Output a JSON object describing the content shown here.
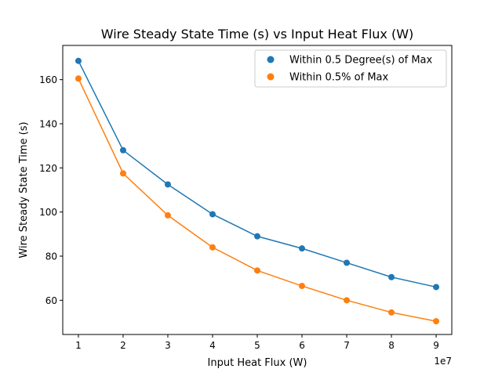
{
  "chart_data": {
    "type": "line",
    "title": "Wire Steady State Time (s) vs Input Heat Flux (W)",
    "xlabel": "Input Heat Flux (W)",
    "ylabel": "Wire Steady State Time (s)",
    "x_offset_label": "1e7",
    "x": [
      1,
      2,
      3,
      4,
      5,
      6,
      7,
      8,
      9
    ],
    "xlim": [
      0.65,
      9.35
    ],
    "ylim": [
      44.5,
      175.5
    ],
    "x_ticks": [
      1,
      2,
      3,
      4,
      5,
      6,
      7,
      8,
      9
    ],
    "y_ticks": [
      60,
      80,
      100,
      120,
      140,
      160
    ],
    "grid": false,
    "legend_position": "top-right",
    "series": [
      {
        "name": "Within 0.5 Degree(s) of Max",
        "color": "#1f77b4",
        "values": [
          168.5,
          128,
          112.5,
          99,
          89,
          83.5,
          77,
          70.5,
          66
        ]
      },
      {
        "name": "Within 0.5% of Max",
        "color": "#ff7f0e",
        "values": [
          160.5,
          117.5,
          98.5,
          84,
          73.5,
          66.5,
          60,
          54.5,
          50.5
        ]
      }
    ]
  }
}
